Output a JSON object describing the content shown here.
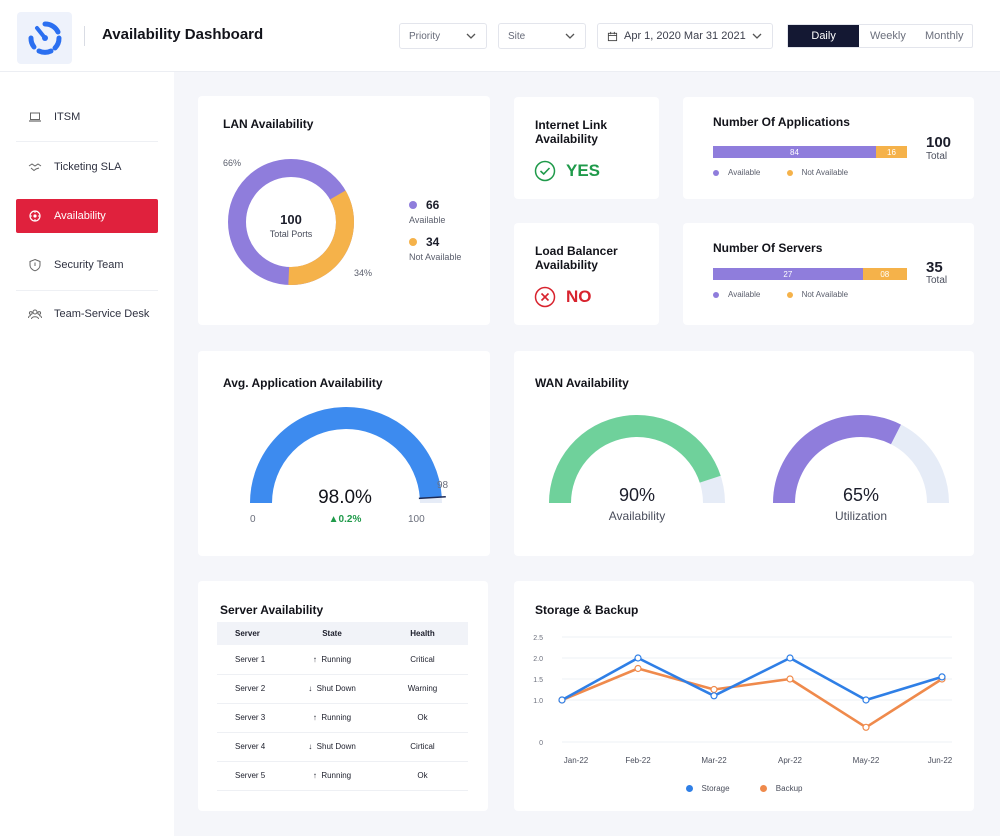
{
  "header": {
    "title": "Availability Dashboard",
    "priority_label": "Priority",
    "site_label": "Site",
    "date_range": "Apr 1, 2020 Mar 31 2021",
    "periods": [
      "Daily",
      "Weekly",
      "Monthly"
    ],
    "active_period": "Daily"
  },
  "sidebar": {
    "items": [
      {
        "label": "ITSM",
        "icon": "laptop-icon"
      },
      {
        "label": "Ticketing SLA",
        "icon": "handshake-icon"
      },
      {
        "label": "Availability",
        "icon": "availability-icon",
        "active": true
      },
      {
        "label": "Security Team",
        "icon": "shield-icon"
      },
      {
        "label": "Team-Service Desk",
        "icon": "team-icon"
      }
    ]
  },
  "colors": {
    "accent_red": "#e0213d",
    "purple": "#8f7ddc",
    "orange": "#f5b24a",
    "blue": "#3d8bef",
    "green": "#6fd19b",
    "light": "#e6ecf7",
    "running": "#1f9a4a",
    "down": "#d8232e",
    "storage": "#2f7fe6",
    "backup": "#ef8a4c"
  },
  "lan": {
    "title": "LAN Availability",
    "total": "100",
    "total_label": "Total Ports",
    "available_pct": "66%",
    "not_available_pct": "34%",
    "available_value": "66",
    "available_label": "Available",
    "not_available_value": "34",
    "not_available_label": "Not Available",
    "available_fraction": 0.66
  },
  "internet": {
    "title_line1": "Internet Link",
    "title_line2": "Availability",
    "status": "YES"
  },
  "load_balancer": {
    "title_line1": "Load Balancer",
    "title_line2": "Availability",
    "status": "NO"
  },
  "applications": {
    "title": "Number Of Applications",
    "available": 84,
    "available_text": "84",
    "not_available": 16,
    "not_available_text": "16",
    "total": "100",
    "total_label": "Total",
    "legend_available": "Available",
    "legend_not_available": "Not Available"
  },
  "servers": {
    "title": "Number Of Servers",
    "available": 27,
    "available_text": "27",
    "not_available": 8,
    "not_available_text": "08",
    "total": "35",
    "total_label": "Total",
    "legend_available": "Available",
    "legend_not_available": "Not Available"
  },
  "avg_app": {
    "title": "Avg. Application Availability",
    "value": "98.0%",
    "change": "0.2%",
    "min_label": "0",
    "max_label": "100",
    "target_label": "98",
    "fraction": 0.98
  },
  "wan": {
    "title": "WAN Availability",
    "availability_value": "90%",
    "availability_label": "Availability",
    "availability_fraction": 0.9,
    "utilization_value": "65%",
    "utilization_label": "Utilization",
    "utilization_fraction": 0.65
  },
  "server_availability": {
    "title": "Server Availability",
    "columns": [
      "Server",
      "State",
      "Health"
    ],
    "rows": [
      {
        "server": "Server 1",
        "state": "Running",
        "health": "Critical"
      },
      {
        "server": "Server 2",
        "state": "Shut Down",
        "health": "Warning"
      },
      {
        "server": "Server 3",
        "state": "Running",
        "health": "Ok"
      },
      {
        "server": "Server 4",
        "state": "Shut Down",
        "health": "Cirtical"
      },
      {
        "server": "Server 5",
        "state": "Running",
        "health": "Ok"
      }
    ]
  },
  "chart_data": {
    "type": "line",
    "title": "Storage & Backup",
    "x": [
      "Jan-22",
      "Feb-22",
      "Mar-22",
      "Apr-22",
      "May-22",
      "Jun-22"
    ],
    "y_ticks": [
      "0",
      "1.0",
      "1.5",
      "2.0",
      "2.5"
    ],
    "series": [
      {
        "name": "Storage",
        "values": [
          1.0,
          2.0,
          1.1,
          2.0,
          1.0,
          1.55
        ]
      },
      {
        "name": "Backup",
        "values": [
          1.0,
          1.75,
          1.25,
          1.5,
          0.35,
          1.5
        ]
      }
    ],
    "ylim": [
      0,
      2.5
    ],
    "grid": true,
    "legend": "bottom"
  }
}
